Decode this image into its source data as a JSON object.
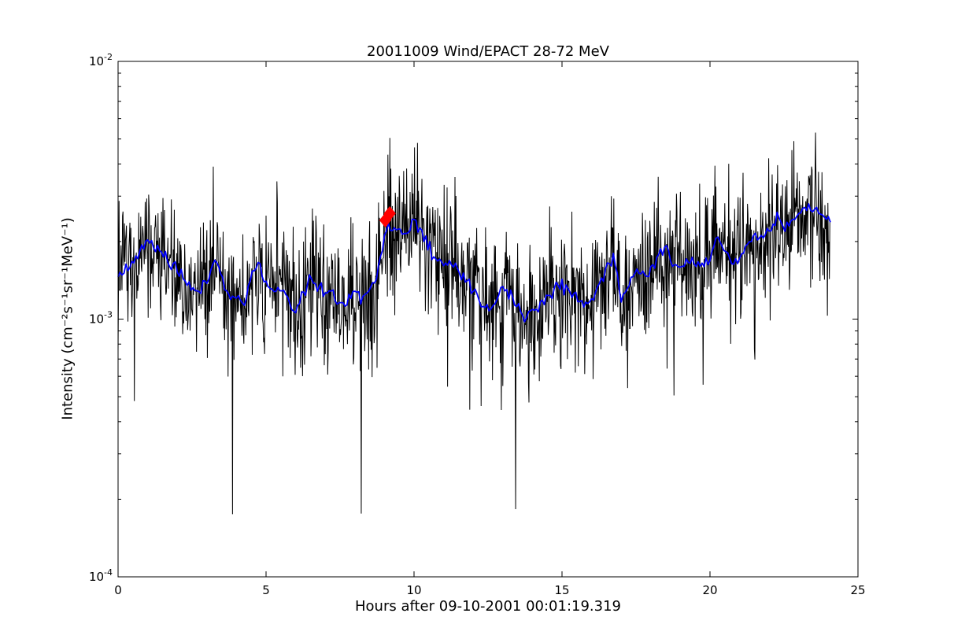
{
  "chart_data": {
    "type": "line",
    "title": "20011009 Wind/EPACT 28-72 MeV",
    "xlabel": "Hours after 09-10-2001 00:01:19.319",
    "ylabel": "Intensity (cm⁻²s⁻¹sr⁻¹MeV⁻¹)",
    "xlim": [
      0,
      25
    ],
    "ylog_exponent_lim": [
      -4,
      -2
    ],
    "x_major_ticks": [
      0,
      5,
      10,
      15,
      20,
      25
    ],
    "y_major_tick_exponents": [
      -2,
      -3,
      -4
    ],
    "y_minor_tick_multiples": [
      2,
      3,
      4,
      5,
      6,
      7,
      8,
      9
    ],
    "grid": false,
    "legend": "none",
    "axis_color": "#000000",
    "background_color": "#ffffff",
    "series": [
      {
        "name": "raw-intensity-1min",
        "color": "#000000",
        "line_width": 1,
        "style": "noisy-generated-from-smoothed"
      },
      {
        "name": "smoothed-intensity",
        "color": "#0000ff",
        "line_width": 1.8,
        "dh": 0.25,
        "values_e3": [
          1.5,
          1.56,
          1.66,
          1.8,
          2.0,
          1.92,
          1.8,
          1.66,
          1.56,
          1.44,
          1.31,
          1.26,
          1.42,
          1.68,
          1.45,
          1.2,
          1.26,
          1.14,
          1.45,
          1.64,
          1.32,
          1.3,
          1.33,
          1.15,
          1.08,
          1.25,
          1.45,
          1.35,
          1.25,
          1.24,
          1.12,
          1.15,
          1.28,
          1.16,
          1.32,
          1.45,
          2.1,
          2.3,
          2.15,
          2.1,
          2.4,
          2.2,
          1.9,
          1.72,
          1.64,
          1.66,
          1.53,
          1.38,
          1.32,
          1.15,
          1.09,
          1.17,
          1.33,
          1.25,
          1.11,
          1.02,
          1.07,
          1.12,
          1.2,
          1.32,
          1.35,
          1.3,
          1.22,
          1.15,
          1.18,
          1.35,
          1.6,
          1.72,
          1.15,
          1.35,
          1.53,
          1.5,
          1.51,
          1.7,
          1.96,
          1.6,
          1.62,
          1.66,
          1.62,
          1.6,
          1.7,
          2.1,
          1.87,
          1.65,
          1.75,
          1.85,
          2.05,
          2.12,
          2.23,
          2.42,
          2.28,
          2.4,
          2.55,
          2.65,
          2.7,
          2.6,
          2.4
        ]
      },
      {
        "name": "event-onset-markers",
        "color": "#ff0000",
        "marker": "diamond",
        "points": [
          {
            "h": 9.03,
            "v": 0.00242
          },
          {
            "h": 9.18,
            "v": 0.00257
          }
        ]
      }
    ],
    "noise": {
      "seed": 20011009,
      "sigma_dex": 0.13,
      "spike_prob": 0.028,
      "spike_extra_dex_min": 0.1,
      "spike_extra_dex_max": 0.4,
      "cadence_per_hour": 60,
      "start_hour": 0,
      "end_hour": 24.05,
      "clamp_min": 0.00016,
      "clamp_max": 0.006,
      "blue_jitter_sigma_dex": 0.013,
      "blue_steps_per_hour": 15
    },
    "deep_dips": [
      {
        "h": 3.87,
        "v": 0.000175
      },
      {
        "h": 8.22,
        "v": 0.000176
      },
      {
        "h": 13.43,
        "v": 0.000183
      }
    ]
  }
}
